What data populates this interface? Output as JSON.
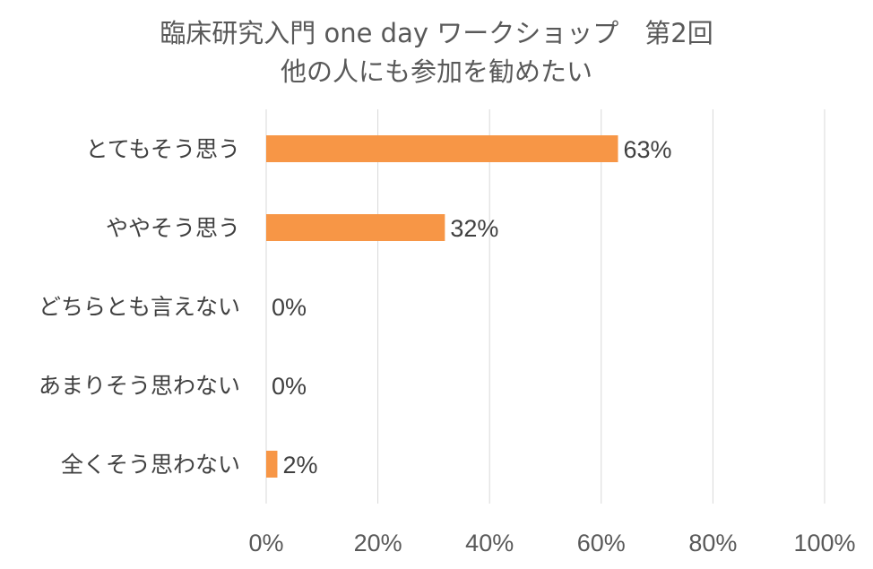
{
  "chart_data": {
    "type": "bar",
    "orientation": "horizontal",
    "title": [
      "臨床研究入門 one day ワークショップ　第2回",
      "他の人にも参加を勧めたい"
    ],
    "categories": [
      "とてもそう思う",
      "ややそう思う",
      "どちらとも言えない",
      "あまりそう思わない",
      "全くそう思わない"
    ],
    "values": [
      63,
      32,
      0,
      0,
      2
    ],
    "data_labels": [
      "63%",
      "32%",
      "0%",
      "0%",
      "2%"
    ],
    "xlim": [
      0,
      100
    ],
    "x_ticks": [
      0,
      20,
      40,
      60,
      80,
      100
    ],
    "x_tick_labels": [
      "0%",
      "20%",
      "40%",
      "60%",
      "80%",
      "100%"
    ],
    "xlabel": "",
    "ylabel": "",
    "grid": true,
    "legend": "none",
    "bar_color": "#f79646"
  }
}
